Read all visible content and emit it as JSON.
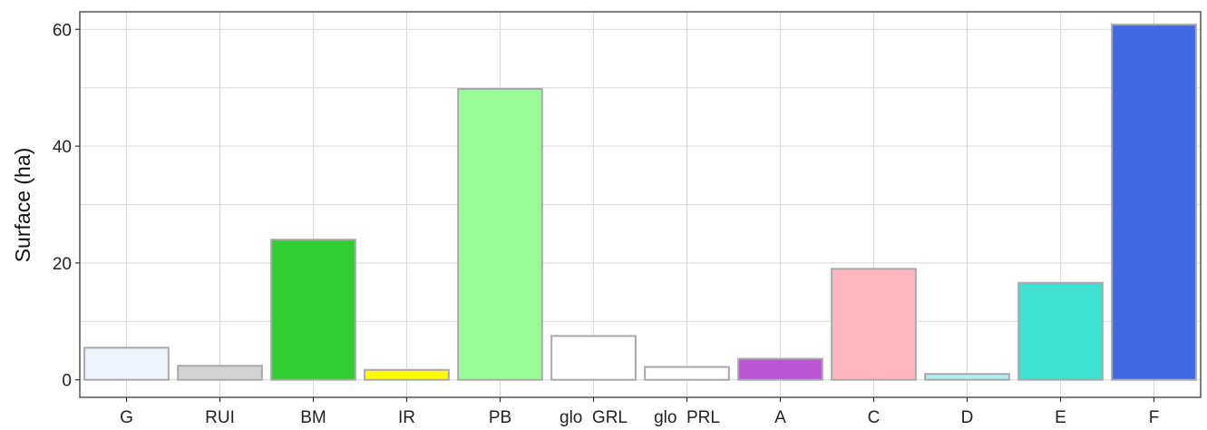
{
  "chart_data": {
    "type": "bar",
    "ylabel": "Surface (ha)",
    "xlabel": "",
    "ylim": [
      -3,
      63
    ],
    "yticks": [
      0,
      20,
      40,
      60
    ],
    "grid": true,
    "categories": [
      "G",
      "RUI",
      "BM",
      "IR",
      "PB",
      "glo_GRL",
      "glo_PRL",
      "A",
      "C",
      "D",
      "E",
      "F"
    ],
    "category_labels": [
      "G",
      "RUI",
      "BM",
      "IR",
      "PB",
      "glo  GRL",
      "glo  PRL",
      "A",
      "C",
      "D",
      "E",
      "F"
    ],
    "values": [
      5.5,
      2.4,
      24.0,
      1.7,
      49.8,
      7.5,
      2.2,
      3.6,
      19.0,
      1.0,
      16.6,
      60.8
    ],
    "colors": [
      "#eef5fc",
      "#d3d3d3",
      "#32cd32",
      "#ffff00",
      "#98fb98",
      "#ffffff",
      "#ffffff",
      "#ba55d3",
      "#ffb6c1",
      "#afeeee",
      "#40e0d0",
      "#4169e1"
    ],
    "bar_stroke": "#a9a9a9"
  }
}
